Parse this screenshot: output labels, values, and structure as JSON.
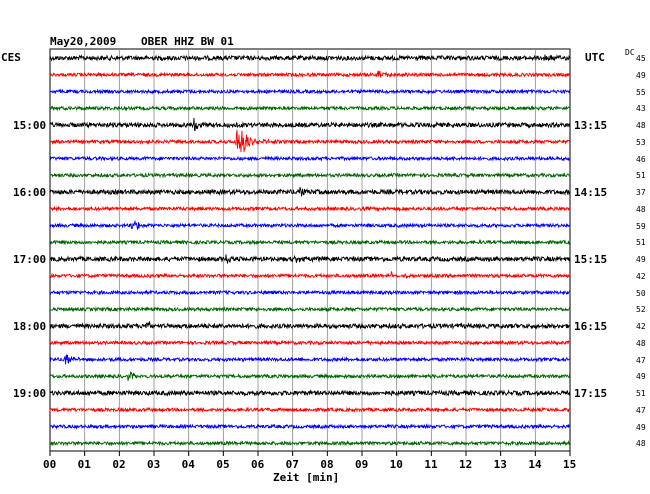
{
  "header": {
    "date": "May20,2009",
    "station": "OBER HHZ BW 01",
    "left_tz": "CES",
    "right_tz": "UTC",
    "dc_label": "DC"
  },
  "chart_data": {
    "type": "line",
    "title": "May20,2009   OBER HHZ BW 01",
    "xlabel": "Zeit [min]",
    "xlim": [
      0,
      15
    ],
    "x_ticks": [
      "00",
      "01",
      "02",
      "03",
      "04",
      "05",
      "06",
      "07",
      "08",
      "09",
      "10",
      "11",
      "12",
      "13",
      "14",
      "15"
    ],
    "row_minutes": 15,
    "trace_colors": [
      "#000000",
      "#ff0000",
      "#0000ff",
      "#006400"
    ],
    "left_time_labels": [
      {
        "row": 4,
        "label": "15:00"
      },
      {
        "row": 8,
        "label": "16:00"
      },
      {
        "row": 12,
        "label": "17:00"
      },
      {
        "row": 16,
        "label": "18:00"
      },
      {
        "row": 20,
        "label": "19:00"
      }
    ],
    "right_time_labels": [
      {
        "row": 4,
        "label": "13:15"
      },
      {
        "row": 8,
        "label": "14:15"
      },
      {
        "row": 12,
        "label": "15:15"
      },
      {
        "row": 16,
        "label": "16:15"
      },
      {
        "row": 20,
        "label": "17:15"
      }
    ],
    "dc_offsets": [
      45,
      49,
      55,
      43,
      48,
      53,
      46,
      51,
      37,
      48,
      59,
      51,
      49,
      42,
      50,
      52,
      42,
      48,
      47,
      49,
      51,
      47,
      49,
      48
    ],
    "events": [
      {
        "row": 5,
        "minute": 5.4,
        "amplitude": "large"
      },
      {
        "row": 4,
        "minute": 4.2,
        "amplitude": "medium"
      },
      {
        "row": 8,
        "minute": 7.2,
        "amplitude": "small"
      },
      {
        "row": 10,
        "minute": 2.4,
        "amplitude": "medium"
      },
      {
        "row": 12,
        "minute": 5.1,
        "amplitude": "small"
      },
      {
        "row": 12,
        "minute": 7.1,
        "amplitude": "small"
      },
      {
        "row": 13,
        "minute": 9.9,
        "amplitude": "small"
      },
      {
        "row": 16,
        "minute": 2.8,
        "amplitude": "small"
      },
      {
        "row": 18,
        "minute": 0.45,
        "amplitude": "medium"
      },
      {
        "row": 19,
        "minute": 2.3,
        "amplitude": "small"
      },
      {
        "row": 1,
        "minute": 9.5,
        "amplitude": "small"
      },
      {
        "row": 0,
        "minute": 14.3,
        "amplitude": "small"
      }
    ]
  }
}
